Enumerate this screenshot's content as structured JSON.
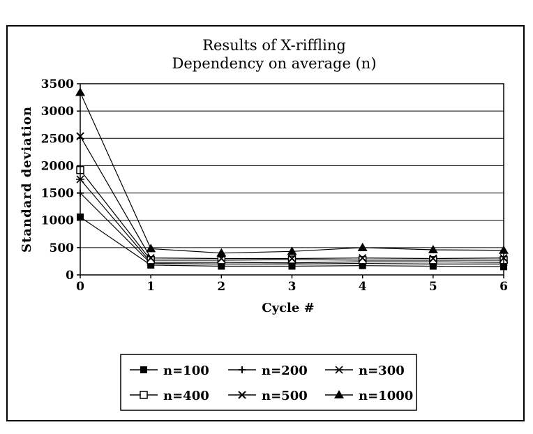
{
  "chart_data": {
    "type": "line",
    "title": "Results of X-riffling",
    "subtitle": "Dependency on average (n)",
    "xlabel": "Cycle #",
    "ylabel": "Standard deviation",
    "x": [
      0,
      1,
      2,
      3,
      4,
      5,
      6
    ],
    "xlim": [
      0,
      6
    ],
    "ylim": [
      0,
      3500
    ],
    "yticks": [
      0,
      500,
      1000,
      1500,
      2000,
      2500,
      3000,
      3500
    ],
    "grid": "horizontal",
    "legend": "bottom",
    "series": [
      {
        "name": "n=100",
        "marker": "filled-square",
        "values": [
          1060,
          180,
          160,
          160,
          170,
          160,
          150
        ]
      },
      {
        "name": "n=200",
        "marker": "plus",
        "values": [
          1500,
          210,
          200,
          200,
          210,
          200,
          200
        ]
      },
      {
        "name": "n=300",
        "marker": "star",
        "values": [
          1750,
          230,
          230,
          220,
          240,
          240,
          230
        ]
      },
      {
        "name": "n=400",
        "marker": "open-square",
        "values": [
          1920,
          270,
          270,
          280,
          270,
          270,
          270
        ]
      },
      {
        "name": "n=500",
        "marker": "x",
        "values": [
          2540,
          310,
          300,
          300,
          310,
          300,
          310
        ]
      },
      {
        "name": "n=1000",
        "marker": "filled-triangle",
        "values": [
          3340,
          480,
          400,
          430,
          500,
          460,
          450
        ]
      }
    ]
  }
}
